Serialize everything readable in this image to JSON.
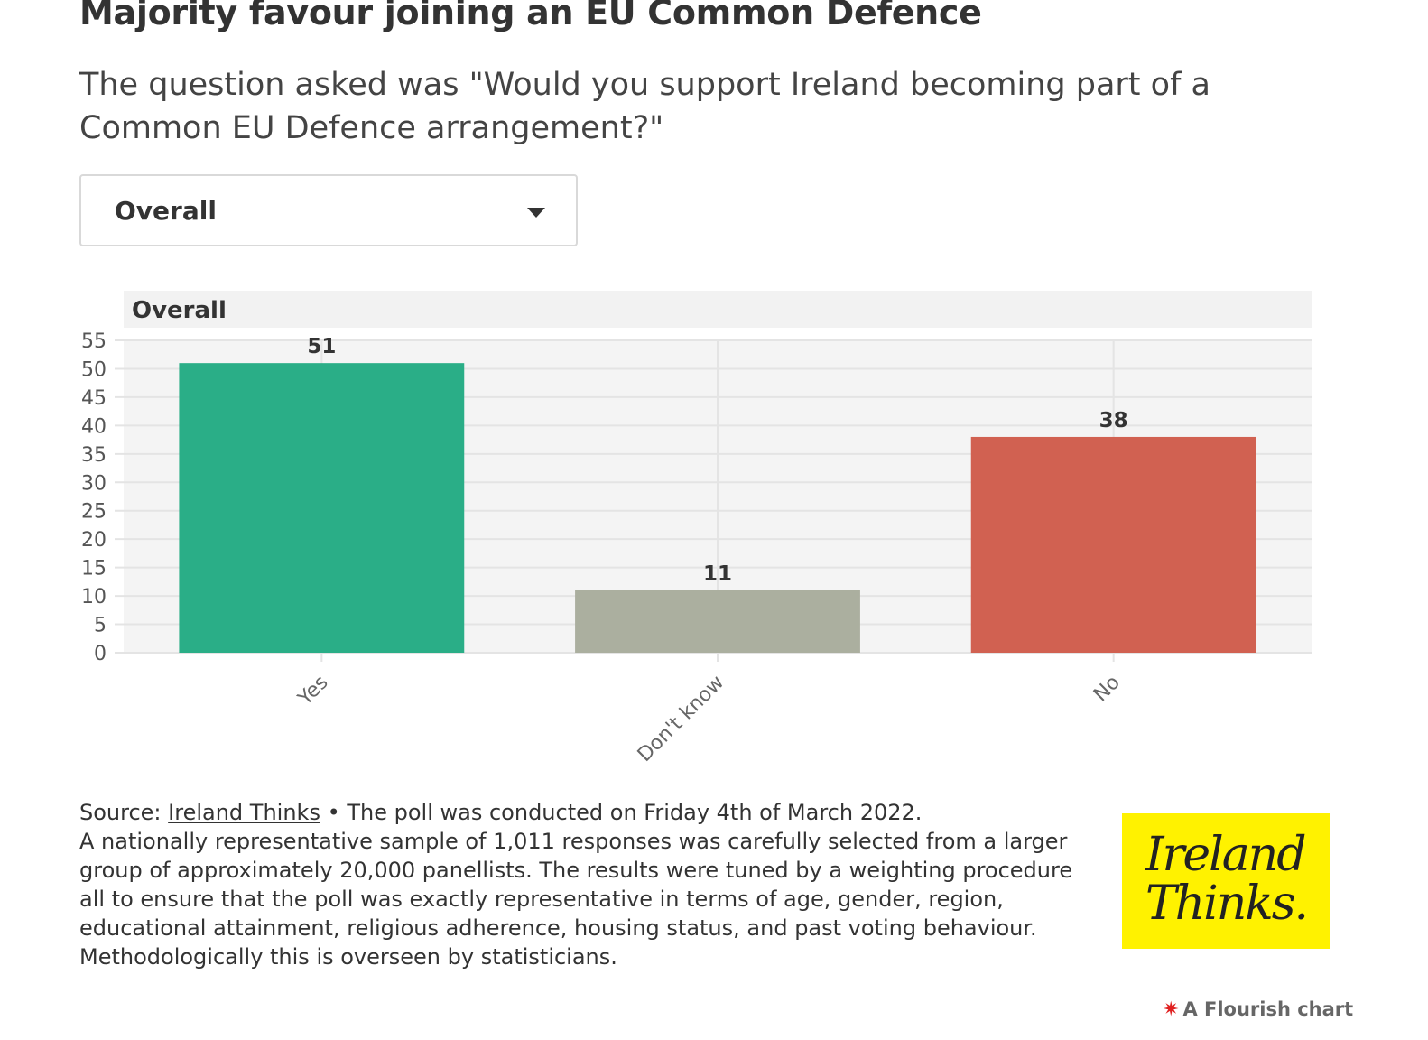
{
  "header": {
    "title": "Majority favour joining an EU Common Defence",
    "subtitle": "The question asked was \"Would you support Ireland becoming part of a Common EU Defence arrangement?\""
  },
  "filter": {
    "selected": "Overall"
  },
  "chart_data": {
    "type": "bar",
    "title": "Overall",
    "categories": [
      "Yes",
      "Don't know",
      "No"
    ],
    "values": [
      51,
      11,
      38
    ],
    "colors": [
      "#2aae87",
      "#abaf9f",
      "#d16151"
    ],
    "ylim": [
      0,
      55
    ],
    "yticks": [
      0,
      5,
      10,
      15,
      20,
      25,
      30,
      35,
      40,
      45,
      50,
      55
    ],
    "grid": true,
    "data_labels": true
  },
  "footer": {
    "source_prefix": "Source: ",
    "source_link": "Ireland Thinks",
    "source_suffix": " • The poll was conducted on Friday 4th of March 2022.",
    "methodology": "A nationally representative sample of 1,011 responses was carefully selected from a larger group of approximately 20,000 panellists. The results were tuned by a weighting procedure all to ensure that the poll was exactly representative in terms of age, gender, region, educational attainment, religious adherence, housing status, and past voting behaviour. Methodologically this is overseen by statisticians.",
    "logo_line1": "Ireland",
    "logo_line2": "Thinks.",
    "logo_color": "#fff200",
    "credit": "A Flourish chart",
    "credit_icon": "flourish-star-icon"
  }
}
